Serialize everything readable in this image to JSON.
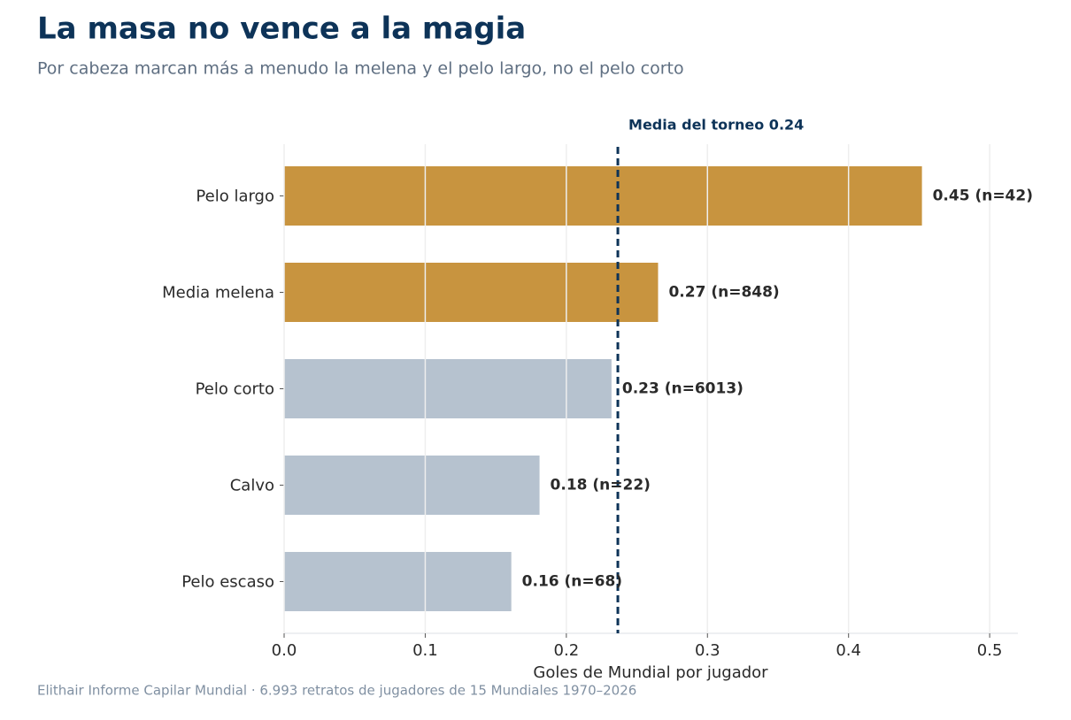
{
  "chart_data": {
    "type": "barh",
    "title": "La masa no vence a la magia",
    "subtitle": "Por cabeza marcan más a menudo la melena y el pelo largo, no el pelo corto",
    "x_label": "Goles de Mundial por jugador",
    "source": "Elithair Informe Capilar Mundial  ·  6.993 retratos de jugadores de 15 Mundiales 1970–2026",
    "categories": [
      "Pelo largo",
      "Media melena",
      "Pelo corto",
      "Calvo",
      "Pelo escaso"
    ],
    "values": [
      0.452,
      0.265,
      0.232,
      0.181,
      0.161
    ],
    "value_labels": [
      "0.45  (n=42)",
      "0.27  (n=848)",
      "0.23  (n=6013)",
      "0.18  (n=22)",
      "0.16  (n=68)"
    ],
    "colors": [
      "#c8943f",
      "#c8943f",
      "#b6c2cf",
      "#b6c2cf",
      "#b6c2cf"
    ],
    "reference_line": {
      "value": 0.2365,
      "label": "Media del torneo 0.24",
      "color": "#0d3358"
    },
    "xlim": [
      0,
      0.52
    ],
    "xticks": [
      {
        "value": 0,
        "label": "0.0"
      },
      0.1,
      0.2,
      0.3,
      0.4,
      0.5
    ],
    "grid": true
  }
}
